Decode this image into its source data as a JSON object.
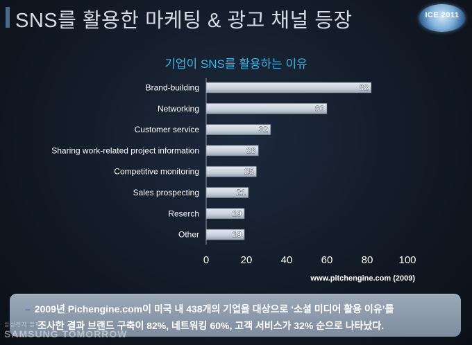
{
  "header": {
    "title": "SNS를 활용한 마케팅 & 광고 채널 등장",
    "badge": "ICE 2011"
  },
  "chart_data": {
    "type": "bar",
    "orientation": "horizontal",
    "title": "기업이 SNS를 활용하는 이유",
    "categories": [
      "Brand-building",
      "Networking",
      "Customer service",
      "Sharing work-related project information",
      "Competitive monitoring",
      "Sales prospecting",
      "Reserch",
      "Other"
    ],
    "values": [
      82,
      60,
      32,
      26,
      25,
      21,
      19,
      19
    ],
    "xlim": [
      0,
      100
    ],
    "xticks": [
      "0",
      "20",
      "40",
      "60",
      "80",
      "100"
    ],
    "grid": false,
    "bar_color": "#c9d1db"
  },
  "source": "www.pitchengine.com (2009)",
  "note": {
    "dash": "–",
    "line1": "2009년 Pichengine.com이 미국 내 438개의 기업을 대상으로 ‘소셜 미디어 활용 이유’를",
    "line2": "조사한 결과 브랜드 구축이 82%, 네트워킹 60%, 고객 서비스가 32% 순으로 나타났다."
  },
  "watermark": {
    "small": "삼성전자 블로그",
    "big": "SAMSUNG TOMORROW"
  }
}
